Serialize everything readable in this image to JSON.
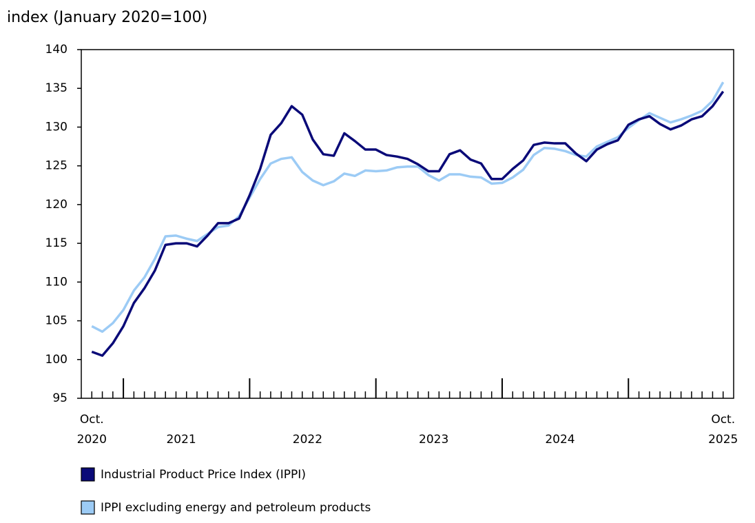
{
  "chart_data": {
    "type": "line",
    "y_label": "index (January 2020=100)",
    "categories": [
      "Oct. 2020",
      null,
      null,
      null,
      null,
      null,
      null,
      null,
      null,
      null,
      null,
      null,
      null,
      null,
      null,
      null,
      null,
      null,
      null,
      null,
      null,
      null,
      null,
      null,
      null,
      null,
      null,
      null,
      null,
      null,
      null,
      null,
      null,
      null,
      null,
      null,
      null,
      null,
      null,
      null,
      null,
      null,
      null,
      null,
      null,
      null,
      null,
      null,
      null,
      null,
      null,
      null,
      null,
      null,
      null,
      null,
      null,
      null,
      null,
      null,
      "Oct. 2025"
    ],
    "year_labels": [
      "2021",
      "2022",
      "2023",
      "2024"
    ],
    "series": [
      {
        "name": "Industrial Product Price Index (IPPI)",
        "color": "#0a0a78",
        "values": [
          101.0,
          100.5,
          102.1,
          104.3,
          107.3,
          109.2,
          111.5,
          114.8,
          115.0,
          115.0,
          114.6,
          116.0,
          117.6,
          117.6,
          118.2,
          121.2,
          124.6,
          129.0,
          130.5,
          132.7,
          131.6,
          128.4,
          126.5,
          126.3,
          129.2,
          128.2,
          127.1,
          127.1,
          126.4,
          126.2,
          125.9,
          125.2,
          124.3,
          124.3,
          126.5,
          127.0,
          125.8,
          125.3,
          123.3,
          123.3,
          124.6,
          125.7,
          127.7,
          128.0,
          127.9,
          127.9,
          126.6,
          125.6,
          127.1,
          127.8,
          128.3,
          130.3,
          131.0,
          131.4,
          130.4,
          129.7,
          130.2,
          131.0,
          131.4,
          132.7,
          134.6
        ]
      },
      {
        "name": "IPPI excluding energy and petroleum products",
        "color": "#9ccbf5",
        "values": [
          104.3,
          103.6,
          104.7,
          106.4,
          108.9,
          110.6,
          113.0,
          115.9,
          116.0,
          115.6,
          115.3,
          116.2,
          117.1,
          117.3,
          118.5,
          120.9,
          123.3,
          125.3,
          125.9,
          126.1,
          124.2,
          123.1,
          122.5,
          123.0,
          124.0,
          123.7,
          124.4,
          124.3,
          124.4,
          124.8,
          124.9,
          124.9,
          123.8,
          123.1,
          123.9,
          123.9,
          123.6,
          123.5,
          122.7,
          122.8,
          123.5,
          124.5,
          126.4,
          127.3,
          127.2,
          126.9,
          126.4,
          126.2,
          127.5,
          128.1,
          128.7,
          129.9,
          130.9,
          131.8,
          131.2,
          130.6,
          131.0,
          131.5,
          132.1,
          133.4,
          135.8
        ]
      }
    ],
    "ylim": [
      95,
      140
    ],
    "yticks": [
      95,
      100,
      105,
      110,
      115,
      120,
      125,
      130,
      135,
      140
    ],
    "grid": false
  }
}
